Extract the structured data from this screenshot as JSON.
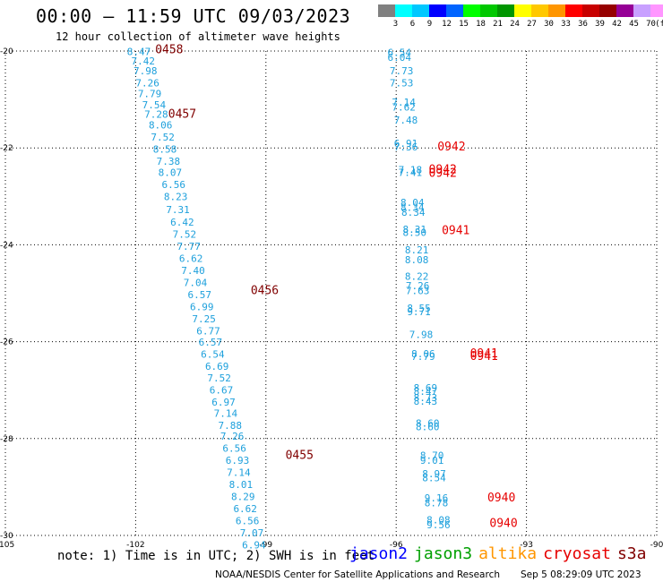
{
  "header": {
    "title": "00:00 – 11:59 UTC 09/03/2023",
    "subtitle": "12 hour collection of altimeter wave heights"
  },
  "legend": {
    "colors": [
      "#808080",
      "#00ffff",
      "#00c8ff",
      "#0000ff",
      "#0064ff",
      "#00ff00",
      "#00c800",
      "#009600",
      "#ffff00",
      "#ffc800",
      "#ff9600",
      "#ff0000",
      "#c80000",
      "#960000",
      "#960096",
      "#c8a0ff",
      "#ff96ff",
      "#000000"
    ],
    "labels": [
      "3",
      "6",
      "9",
      "12",
      "15",
      "18",
      "21",
      "24",
      "27",
      "30",
      "33",
      "36",
      "39",
      "42",
      "45",
      "70"
    ],
    "unit": "(ft)"
  },
  "map": {
    "lon_ticks": [
      "-105",
      "-102",
      "-99",
      "-96",
      "-93",
      "-90"
    ],
    "lat_ticks": [
      "-20",
      "-22",
      "-24",
      "-26",
      "-28",
      "-30"
    ],
    "lon_range": [
      -105,
      -90
    ],
    "lat_range": [
      -20,
      -30
    ],
    "grid": "dotted",
    "text_color": "#1ea0dc",
    "pass_label_colors": {
      "0455": "#800000",
      "0456": "#800000",
      "0457": "#800000",
      "0458": "#800000",
      "0940": "#e60000",
      "0941": "#e60000",
      "0942": "#e60000"
    },
    "tracks": [
      {
        "points": [
          [
            "8.47",
            -102.2,
            -20.08
          ],
          [
            "7.42",
            -102.1,
            -20.28
          ],
          [
            "7.98",
            -102.05,
            -20.48
          ],
          [
            "7.26",
            -102.0,
            -20.73
          ],
          [
            "7.79",
            -101.95,
            -20.95
          ],
          [
            "7.54",
            -101.85,
            -21.18
          ],
          [
            "7.28",
            -101.8,
            -21.38
          ],
          [
            "8.06",
            -101.7,
            -21.6
          ],
          [
            "7.52",
            -101.65,
            -21.85
          ],
          [
            "8.58",
            -101.6,
            -22.1
          ],
          [
            "7.38",
            -101.52,
            -22.35
          ],
          [
            "8.07",
            -101.48,
            -22.58
          ],
          [
            "6.56",
            -101.4,
            -22.83
          ],
          [
            "8.23",
            -101.35,
            -23.08
          ],
          [
            "7.31",
            -101.3,
            -23.35
          ],
          [
            "6.42",
            -101.2,
            -23.6
          ],
          [
            "7.52",
            -101.15,
            -23.85
          ],
          [
            "7.77",
            -101.05,
            -24.1
          ],
          [
            "6.62",
            -101.0,
            -24.35
          ],
          [
            "7.40",
            -100.95,
            -24.6
          ],
          [
            "7.04",
            -100.9,
            -24.85
          ],
          [
            "6.57",
            -100.8,
            -25.1
          ],
          [
            "6.99",
            -100.75,
            -25.35
          ],
          [
            "7.25",
            -100.7,
            -25.6
          ],
          [
            "6.77",
            -100.6,
            -25.85
          ],
          [
            "6.57",
            -100.55,
            -26.08
          ],
          [
            "6.54",
            -100.5,
            -26.33
          ],
          [
            "6.69",
            -100.4,
            -26.58
          ],
          [
            "7.52",
            -100.35,
            -26.82
          ],
          [
            "6.67",
            -100.3,
            -27.07
          ],
          [
            "6.97",
            -100.25,
            -27.32
          ],
          [
            "7.14",
            -100.2,
            -27.55
          ],
          [
            "7.88",
            -100.1,
            -27.8
          ],
          [
            "7.26",
            -100.05,
            -28.02
          ],
          [
            "6.56",
            -100.0,
            -28.27
          ],
          [
            "6.93",
            -99.93,
            -28.52
          ],
          [
            "7.14",
            -99.9,
            -28.77
          ],
          [
            "8.01",
            -99.85,
            -29.02
          ],
          [
            "8.29",
            -99.8,
            -29.27
          ],
          [
            "6.62",
            -99.75,
            -29.52
          ],
          [
            "6.56",
            -99.7,
            -29.77
          ],
          [
            "7.07",
            -99.6,
            -30.02
          ],
          [
            "6.94",
            -99.55,
            -30.27
          ]
        ]
      },
      {
        "points": [
          [
            "6.54",
            -96.2,
            -20.1
          ],
          [
            "6.04",
            -96.2,
            -20.2
          ],
          [
            "7.73",
            -96.15,
            -20.48
          ],
          [
            "7.53",
            -96.15,
            -20.73
          ],
          [
            "7.14",
            -96.1,
            -21.13
          ],
          [
            "7.62",
            -96.1,
            -21.23
          ],
          [
            "7.48",
            -96.05,
            -21.5
          ],
          [
            "6.91",
            -96.05,
            -21.98
          ],
          [
            "7.36",
            -96.05,
            -22.05
          ],
          [
            "7.18",
            -95.95,
            -22.52
          ],
          [
            "7.41",
            -95.95,
            -22.58
          ],
          [
            "8.04",
            -95.9,
            -23.2
          ],
          [
            "8.34",
            -95.9,
            -23.3
          ],
          [
            "8.34",
            -95.88,
            -23.4
          ],
          [
            "8.31",
            -95.85,
            -23.75
          ],
          [
            "8.50",
            -95.85,
            -23.82
          ],
          [
            "8.21",
            -95.8,
            -24.18
          ],
          [
            "8.08",
            -95.8,
            -24.38
          ],
          [
            "8.22",
            -95.8,
            -24.72
          ],
          [
            "7.26",
            -95.78,
            -24.92
          ],
          [
            "7.63",
            -95.78,
            -25.02
          ],
          [
            "8.55",
            -95.75,
            -25.38
          ],
          [
            "9.71",
            -95.75,
            -25.45
          ],
          [
            "7.98",
            -95.7,
            -25.92
          ],
          [
            "8.06",
            -95.65,
            -26.32
          ],
          [
            "7.79",
            -95.65,
            -26.38
          ],
          [
            "8.69",
            -95.6,
            -27.02
          ],
          [
            "8.47",
            -95.6,
            -27.1
          ],
          [
            "8.73",
            -95.6,
            -27.23
          ],
          [
            "8.43",
            -95.6,
            -27.3
          ],
          [
            "8.60",
            -95.55,
            -27.75
          ],
          [
            "8.60",
            -95.55,
            -27.83
          ],
          [
            "8.70",
            -95.45,
            -28.42
          ],
          [
            "9.01",
            -95.45,
            -28.52
          ],
          [
            "8.97",
            -95.4,
            -28.8
          ],
          [
            "8.54",
            -95.4,
            -28.88
          ],
          [
            "9.16",
            -95.35,
            -29.3
          ],
          [
            "8.78",
            -95.35,
            -29.4
          ],
          [
            "8.08",
            -95.3,
            -29.75
          ],
          [
            "9.56",
            -95.3,
            -29.85
          ]
        ]
      }
    ],
    "pass_labels": [
      [
        "0458",
        -101.55,
        -20.05
      ],
      [
        "0457",
        -101.25,
        -21.38
      ],
      [
        "0456",
        -99.35,
        -25.02
      ],
      [
        "0455",
        -98.55,
        -28.42
      ],
      [
        "0942",
        -95.05,
        -22.05
      ],
      [
        "0942",
        -95.25,
        -22.52
      ],
      [
        "0942",
        -95.25,
        -22.6
      ],
      [
        "0941",
        -94.95,
        -23.78
      ],
      [
        "0941",
        -94.3,
        -26.32
      ],
      [
        "0941",
        -94.3,
        -26.38
      ],
      [
        "0940",
        -93.9,
        -29.3
      ],
      [
        "0940",
        -93.85,
        -29.82
      ]
    ]
  },
  "footer": {
    "note": "note: 1) Time is in UTC; 2) SWH is in feet",
    "satellites": [
      {
        "name": "jason2",
        "color": "#0000ff"
      },
      {
        "name": "jason3",
        "color": "#00a000"
      },
      {
        "name": "altika",
        "color": "#ff9600"
      },
      {
        "name": "cryosat",
        "color": "#e60000"
      },
      {
        "name": "s3a",
        "color": "#800000"
      }
    ],
    "credit": "NOAA/NESDIS Center for Satellite Applications and Research",
    "timestamp": "Sep  5 08:29:09 UTC 2023"
  }
}
